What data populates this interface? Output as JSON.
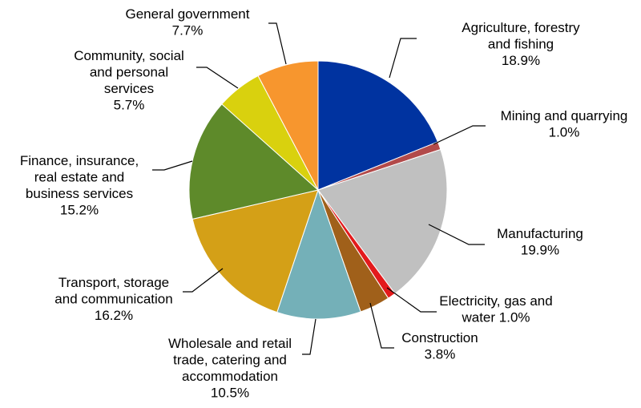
{
  "chart_data": {
    "type": "pie",
    "start_angle_deg": 0,
    "direction": "clockwise",
    "slices": [
      {
        "name": "Agriculture, forestry and fishing",
        "label_lines": [
          "Agriculture, forestry",
          "and fishing",
          "18.9%"
        ],
        "value": 18.9,
        "color": "#0033A0"
      },
      {
        "name": "Mining and quarrying",
        "label_lines": [
          "Mining and quarrying",
          "1.0%"
        ],
        "value": 1.0,
        "color": "#B24A4A"
      },
      {
        "name": "Manufacturing",
        "label_lines": [
          "Manufacturing",
          "19.9%"
        ],
        "value": 19.9,
        "color": "#C0C0C0"
      },
      {
        "name": "Electricity, gas and water",
        "label_lines": [
          "Electricity, gas and",
          "water 1.0%"
        ],
        "value": 1.0,
        "color": "#E31A1C"
      },
      {
        "name": "Construction",
        "label_lines": [
          "Construction",
          "3.8%"
        ],
        "value": 3.8,
        "color": "#A0601A"
      },
      {
        "name": "Wholesale and retail trade, catering and accommodation",
        "label_lines": [
          "Wholesale and retail",
          "trade, catering and",
          "accommodation",
          "10.5%"
        ],
        "value": 10.5,
        "color": "#74B0B8"
      },
      {
        "name": "Transport, storage and communication",
        "label_lines": [
          "Transport, storage",
          "and communication",
          "16.2%"
        ],
        "value": 16.2,
        "color": "#D4A017"
      },
      {
        "name": "Finance, insurance, real estate and business services",
        "label_lines": [
          "Finance, insurance,",
          "real estate and",
          "business services",
          "15.2%"
        ],
        "value": 15.2,
        "color": "#5E8A2A"
      },
      {
        "name": "Community, social and personal services",
        "label_lines": [
          "Community, social",
          "and personal",
          "services",
          "5.7%"
        ],
        "value": 5.7,
        "color": "#D9D10E"
      },
      {
        "name": "General government",
        "label_lines": [
          "General government",
          "7.7%"
        ],
        "value": 7.7,
        "color": "#F7962E"
      }
    ]
  }
}
